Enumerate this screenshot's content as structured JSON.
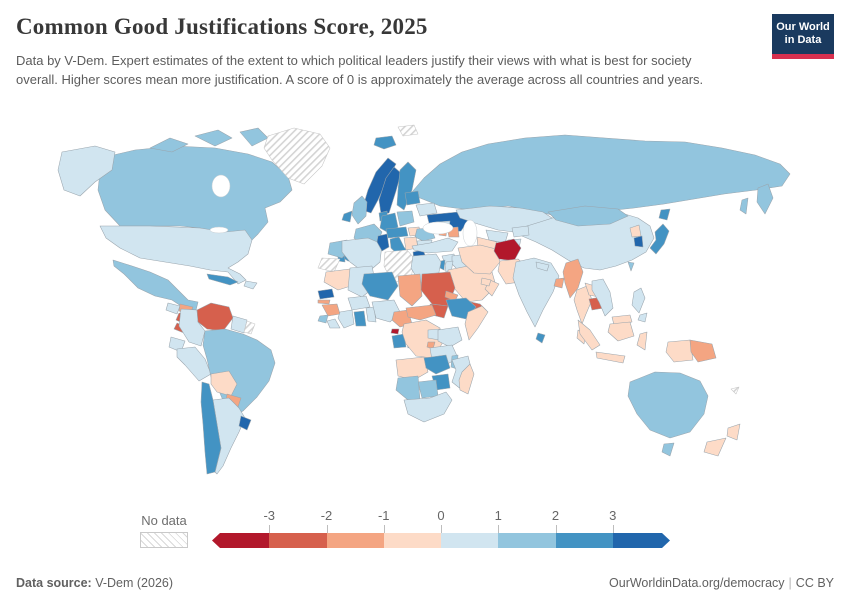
{
  "header": {
    "title": "Common Good Justifications Score, 2025",
    "logo": {
      "line1": "Our World",
      "line2": "in Data"
    }
  },
  "subtitle": "Data by V-Dem. Expert estimates of the extent to which political leaders justify their views with what is best for society overall. Higher scores mean more justification. A score of 0 is approximately the average across all countries and years.",
  "footer": {
    "source_label": "Data source:",
    "source_value": " V-Dem (2026)",
    "link_text": "OurWorldinData.org/democracy",
    "separator": "|",
    "license": "CC BY"
  },
  "colors": {
    "logo_navy": "#1a3a5f",
    "logo_red": "#d8304f",
    "ocean": "#ffffff",
    "country_border": "#9aa5ad"
  },
  "chart_data": {
    "type": "choropleth_map",
    "title": "Common Good Justifications Score, 2025",
    "value_range": [
      -3,
      3
    ],
    "legend": {
      "no_data_label": "No data",
      "tick_labels": [
        "-3",
        "-2",
        "-1",
        "0",
        "1",
        "2",
        "3"
      ],
      "bin_colors": [
        "#b2182b",
        "#d6604d",
        "#f4a582",
        "#fddbc7",
        "#d1e5f0",
        "#92c5de",
        "#4393c3",
        "#2166ac"
      ],
      "bin_ranges": [
        "< -3",
        "-3 to -2",
        "-2 to -1",
        "-1 to 0",
        "0 to 1",
        "1 to 2",
        "2 to 3",
        "> 3"
      ]
    },
    "no_data_regions": [
      "Greenland",
      "Libya",
      "Western Sahara",
      "French Guiana",
      "Svalbard",
      "New Caledonia"
    ],
    "countries": {
      "Afghanistan": -3.5,
      "Equatorial Guinea": -3.3,
      "Venezuela": -2.5,
      "Nicaragua": -2.5,
      "Costa Rica": -2.3,
      "Sudan": -2.5,
      "South Sudan": -2.2,
      "Yemen": -2.6,
      "Cambodia": -2.4,
      "Honduras": -1.5,
      "Chad": -1.6,
      "Central African Republic": -1.5,
      "Cameroon": -1.5,
      "Eritrea": -1.4,
      "Guinea": -1.5,
      "Gambia": -1.4,
      "Azerbaijan": -1.5,
      "Armenia": -1.3,
      "Myanmar": -1.6,
      "Bangladesh": -1.5,
      "Papua New Guinea": -1.4,
      "Paraguay": -1.5,
      "Burundi": -1.4,
      "Bolivia": -0.5,
      "Mauritania": -0.6,
      "DR Congo": -0.5,
      "Angola": -0.5,
      "Madagascar": -0.5,
      "Somalia": -0.5,
      "Saudi Arabia": -0.6,
      "Oman": -0.4,
      "United Arab Emirates": -0.4,
      "Iran": -0.5,
      "Turkmenistan": -0.6,
      "Pakistan": -0.4,
      "North Korea": -0.5,
      "Thailand": -0.5,
      "Laos": -0.5,
      "Malaysia": -0.5,
      "Indonesia": -0.5,
      "New Zealand": -0.4,
      "Hungary": -0.5,
      "Serbia": -0.5,
      "United States": 0.5,
      "Guatemala": 0.5,
      "Dominican Republic": 0.4,
      "Colombia": 0.5,
      "Peru": 0.5,
      "Ecuador": 0.6,
      "Argentina": 0.5,
      "Guyana": 0.4,
      "Algeria": 0.5,
      "Mali": 0.3,
      "Egypt": 0.5,
      "Nigeria": 0.5,
      "Burkina Faso": 0.4,
      "Côte d'Ivoire": 0.5,
      "Liberia": 0.4,
      "Togo": 0.4,
      "Kenya": 0.5,
      "Uganda": 0.4,
      "Tanzania": 0.5,
      "Mozambique": 0.5,
      "South Africa": 0.5,
      "Turkey": 0.4,
      "Syria": 0.4,
      "Iraq": 0.4,
      "Jordan": 0.4,
      "Georgia": 0.5,
      "Kazakhstan": 0.5,
      "Uzbekistan": 0.4,
      "Kyrgyzstan": 0.5,
      "Tajikistan": 0.3,
      "India": 0.5,
      "Nepal": 0.4,
      "China": 0.4,
      "Vietnam": 0.5,
      "Philippines": 0.5,
      "Belarus": 0.4,
      "Bulgaria": 0.5,
      "Canada": 1.5,
      "Mexico": 1.5,
      "Brazil": 1.5,
      "Russia": 1.3,
      "United Kingdom": 1.5,
      "France": 1.5,
      "Poland": 1.3,
      "Romania": 1.2,
      "Morocco": 1.2,
      "Sierra Leone": 1.3,
      "Malawi": 1.3,
      "Namibia": 1.5,
      "Botswana": 1.5,
      "Congo": 1.2,
      "Mongolia": 1.5,
      "Australia": 1.6,
      "Taiwan": 1.5,
      "Iceland": 2.5,
      "Finland": 2.6,
      "Denmark": 2.4,
      "Ireland": 2.5,
      "Germany": 2.3,
      "Spain": 2.5,
      "Portugal": 2.5,
      "Austria": 2.3,
      "Italy": 2.3,
      "Estonia": 2.2,
      "Ethiopia": 2.2,
      "Ghana": 2.4,
      "Gabon": 2.2,
      "Zambia": 2.2,
      "Zimbabwe": 2.1,
      "Japan": 2.3,
      "Israel": 2.2,
      "Cuba": 2.2,
      "Chile": 2.6,
      "Niger": 2.6,
      "Panama": 2.3,
      "Sri Lanka": 2.3,
      "Norway": 3.3,
      "Sweden": 3.4,
      "Ukraine": 3.1,
      "Greece": 3.1,
      "Tunisia": 3.2,
      "Senegal": 3.1,
      "South Korea": 3.3,
      "Uruguay": 3.2
    }
  }
}
